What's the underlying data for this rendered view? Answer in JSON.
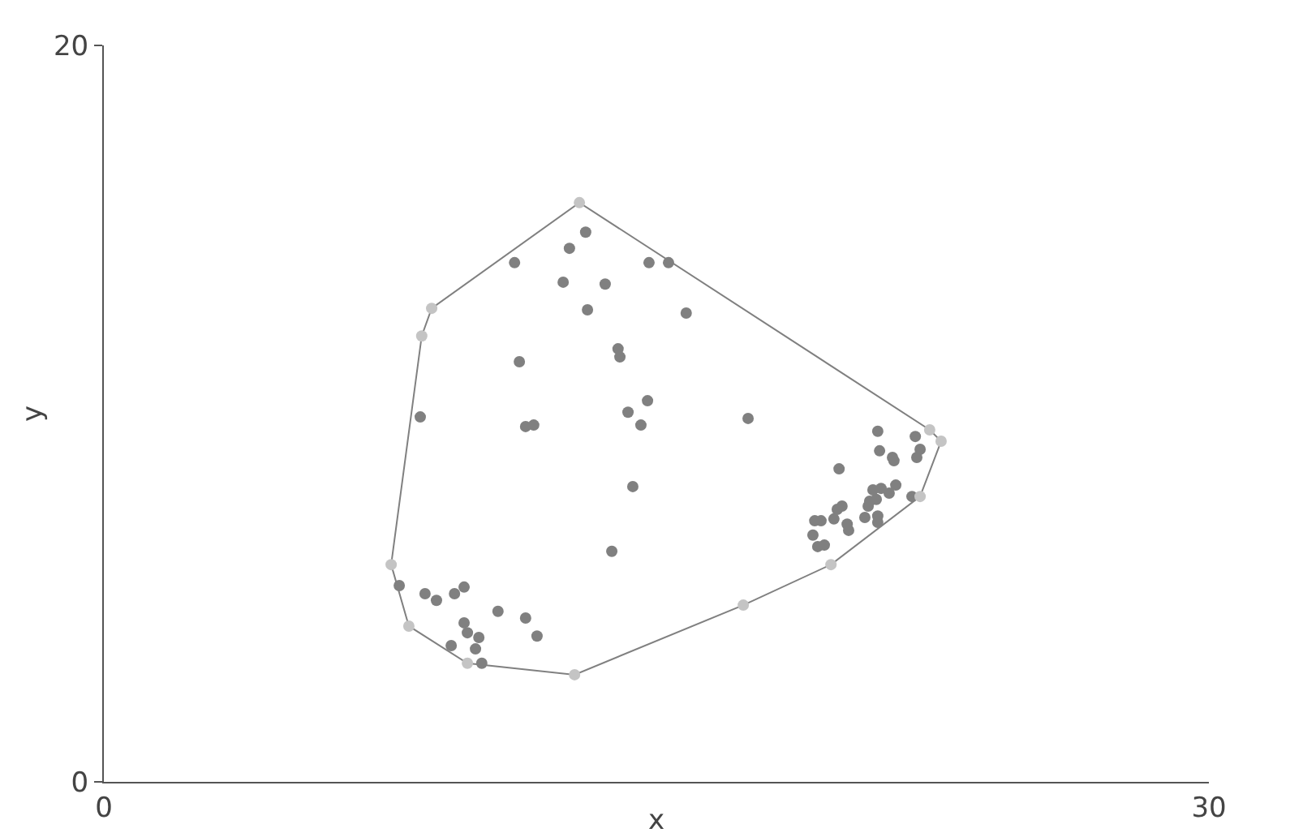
{
  "chart_data": {
    "type": "scatter",
    "xlabel": "x",
    "ylabel": "y",
    "xlim": [
      0,
      30
    ],
    "ylim": [
      0,
      20
    ],
    "xticks": [
      0,
      30
    ],
    "yticks": [
      0,
      20
    ],
    "marker": "circle",
    "series": [
      {
        "type": "scatter",
        "color": "#808080",
        "x": [
          13.08,
          12.64,
          11.15,
          14.8,
          15.33,
          12.47,
          13.61,
          13.13,
          15.81,
          13.96,
          14.01,
          11.28,
          8.59,
          11.45,
          11.67,
          14.23,
          14.76,
          14.58,
          17.49,
          14.36,
          13.79,
          8.02,
          8.72,
          9.03,
          9.52,
          9.78,
          10.7,
          11.45,
          11.76,
          9.78,
          9.87,
          10.18,
          9.43,
          10.09,
          10.26,
          21.01,
          22.03,
          22.16,
          22.07,
          21.06,
          21.41,
          21.45,
          19.96,
          21.5,
          20.88,
          21.1,
          21.32,
          21.94,
          20.79,
          20.97,
          20.75,
          20.04,
          19.91,
          20.66,
          21.01,
          19.82,
          21.01,
          19.3,
          19.47,
          20.18,
          20.22,
          19.25,
          19.38,
          19.56
        ],
        "values": [
          14.93,
          14.49,
          14.1,
          14.1,
          14.1,
          13.57,
          13.52,
          12.82,
          12.73,
          11.76,
          11.54,
          11.41,
          9.91,
          9.65,
          9.69,
          10.04,
          10.35,
          9.69,
          9.87,
          8.02,
          6.26,
          5.33,
          5.11,
          4.93,
          5.11,
          5.29,
          4.63,
          4.45,
          3.96,
          4.32,
          4.05,
          3.92,
          3.7,
          3.61,
          3.22,
          9.52,
          9.38,
          9.03,
          8.81,
          8.99,
          8.81,
          8.72,
          8.5,
          8.06,
          7.93,
          7.97,
          7.84,
          7.75,
          7.62,
          7.67,
          7.49,
          7.49,
          7.4,
          7.18,
          7.22,
          7.14,
          7.05,
          7.09,
          7.09,
          7,
          6.83,
          6.7,
          6.39,
          6.43
        ]
      },
      {
        "type": "line",
        "color": "#808080",
        "marker": "none",
        "x": [
          7.8,
          8.63,
          8.9,
          12.91,
          22.42,
          22.73
        ],
        "values": [
          5.9,
          12.11,
          12.86,
          15.73,
          9.56,
          9.25
        ]
      },
      {
        "type": "line",
        "color": "#808080",
        "marker": "none",
        "x": [
          7.8,
          8.28,
          9.87,
          12.78,
          17.36,
          19.74,
          22.16,
          22.73
        ],
        "values": [
          5.9,
          4.23,
          3.22,
          2.91,
          4.8,
          5.9,
          7.75,
          9.25
        ]
      },
      {
        "type": "scatter",
        "color": "#c4c4c4",
        "x": [
          12.91,
          22.42,
          22.73,
          22.16,
          19.74,
          17.36,
          12.78,
          9.87,
          8.28,
          7.8,
          8.63,
          8.9
        ],
        "values": [
          15.73,
          9.56,
          9.25,
          7.75,
          5.9,
          4.8,
          2.91,
          3.22,
          4.23,
          5.9,
          12.11,
          12.86
        ]
      }
    ]
  }
}
